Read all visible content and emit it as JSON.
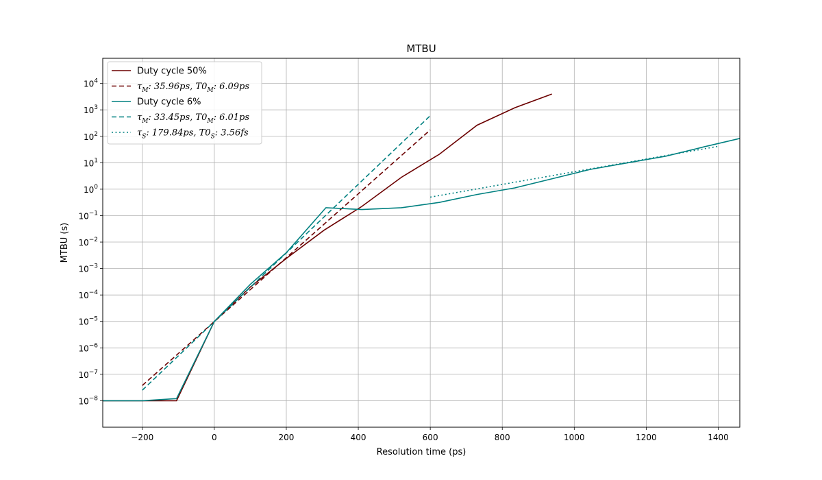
{
  "chart_data": {
    "type": "line",
    "title": "MTBU",
    "xlabel": "Resolution time (ps)",
    "ylabel": "MTBU (s)",
    "xlim": [
      -310,
      1460
    ],
    "ylim_log10": [
      -9.0,
      4.95
    ],
    "y_scale": "log",
    "grid": true,
    "legend_position": "top-left",
    "x_ticks": [
      -200,
      0,
      200,
      400,
      600,
      800,
      1000,
      1200,
      1400
    ],
    "x_tick_labels": [
      "−200",
      "0",
      "200",
      "400",
      "600",
      "800",
      "1000",
      "1200",
      "1400"
    ],
    "y_tick_exponents": [
      -8,
      -7,
      -6,
      -5,
      -4,
      -3,
      -2,
      -1,
      0,
      1,
      2,
      3,
      4
    ],
    "y_tick_labels": [
      "−8",
      "−7",
      "−6",
      "−5",
      "−4",
      "−3",
      "−2",
      "−1",
      "0",
      "1",
      "2",
      "3",
      "4"
    ],
    "y_tick_base": "10",
    "series": [
      {
        "name": "Duty cycle 50%",
        "color": "#6b0000",
        "style": "solid",
        "points": [
          [
            -310,
            -8.0
          ],
          [
            -105,
            -8.0
          ],
          [
            0,
            -5.0
          ],
          [
            100,
            -3.7
          ],
          [
            200,
            -2.62
          ],
          [
            305,
            -1.55
          ],
          [
            410,
            -0.65
          ],
          [
            520,
            0.45
          ],
          [
            625,
            1.32
          ],
          [
            730,
            2.42
          ],
          [
            835,
            3.08
          ],
          [
            938,
            3.6
          ]
        ]
      },
      {
        "name": "τ_M: 35.96ps, T0_M: 6.09ps",
        "color": "#6b0000",
        "style": "dashed",
        "points": [
          [
            -200,
            -7.42
          ],
          [
            600,
            2.24
          ]
        ]
      },
      {
        "name": "Duty cycle 6%",
        "color": "#008080",
        "style": "solid",
        "points": [
          [
            -310,
            -8.0
          ],
          [
            -200,
            -8.0
          ],
          [
            -105,
            -7.92
          ],
          [
            0,
            -5.0
          ],
          [
            100,
            -3.6
          ],
          [
            200,
            -2.4
          ],
          [
            310,
            -0.7
          ],
          [
            410,
            -0.77
          ],
          [
            520,
            -0.7
          ],
          [
            625,
            -0.5
          ],
          [
            730,
            -0.2
          ],
          [
            835,
            0.05
          ],
          [
            940,
            0.4
          ],
          [
            1045,
            0.75
          ],
          [
            1150,
            1.0
          ],
          [
            1255,
            1.25
          ],
          [
            1360,
            1.6
          ],
          [
            1460,
            1.92
          ]
        ]
      },
      {
        "name": "τ_M: 33.45ps, T0_M: 6.01ps",
        "color": "#008080",
        "style": "dashed",
        "points": [
          [
            -200,
            -7.6
          ],
          [
            600,
            2.78
          ]
        ]
      },
      {
        "name": "τ_S: 179.84ps, T0_S: 3.56fs",
        "color": "#008080",
        "style": "dotted",
        "points": [
          [
            600,
            -0.3
          ],
          [
            1400,
            1.62
          ]
        ]
      }
    ],
    "legend": [
      {
        "kind": "text",
        "text": "Duty cycle 50%"
      },
      {
        "kind": "math",
        "tau": "τ",
        "tau_sub": "M",
        "tau_val": ": 35.96ps, ",
        "t0": "T0",
        "t0_sub": "M",
        "t0_val": ": 6.09ps"
      },
      {
        "kind": "text",
        "text": "Duty cycle 6%"
      },
      {
        "kind": "math",
        "tau": "τ",
        "tau_sub": "M",
        "tau_val": ": 33.45ps, ",
        "t0": "T0",
        "t0_sub": "M",
        "t0_val": ": 6.01ps"
      },
      {
        "kind": "math",
        "tau": "τ",
        "tau_sub": "S",
        "tau_val": ": 179.84ps, ",
        "t0": "T0",
        "t0_sub": "S",
        "t0_val": ": 3.56fs"
      }
    ]
  }
}
